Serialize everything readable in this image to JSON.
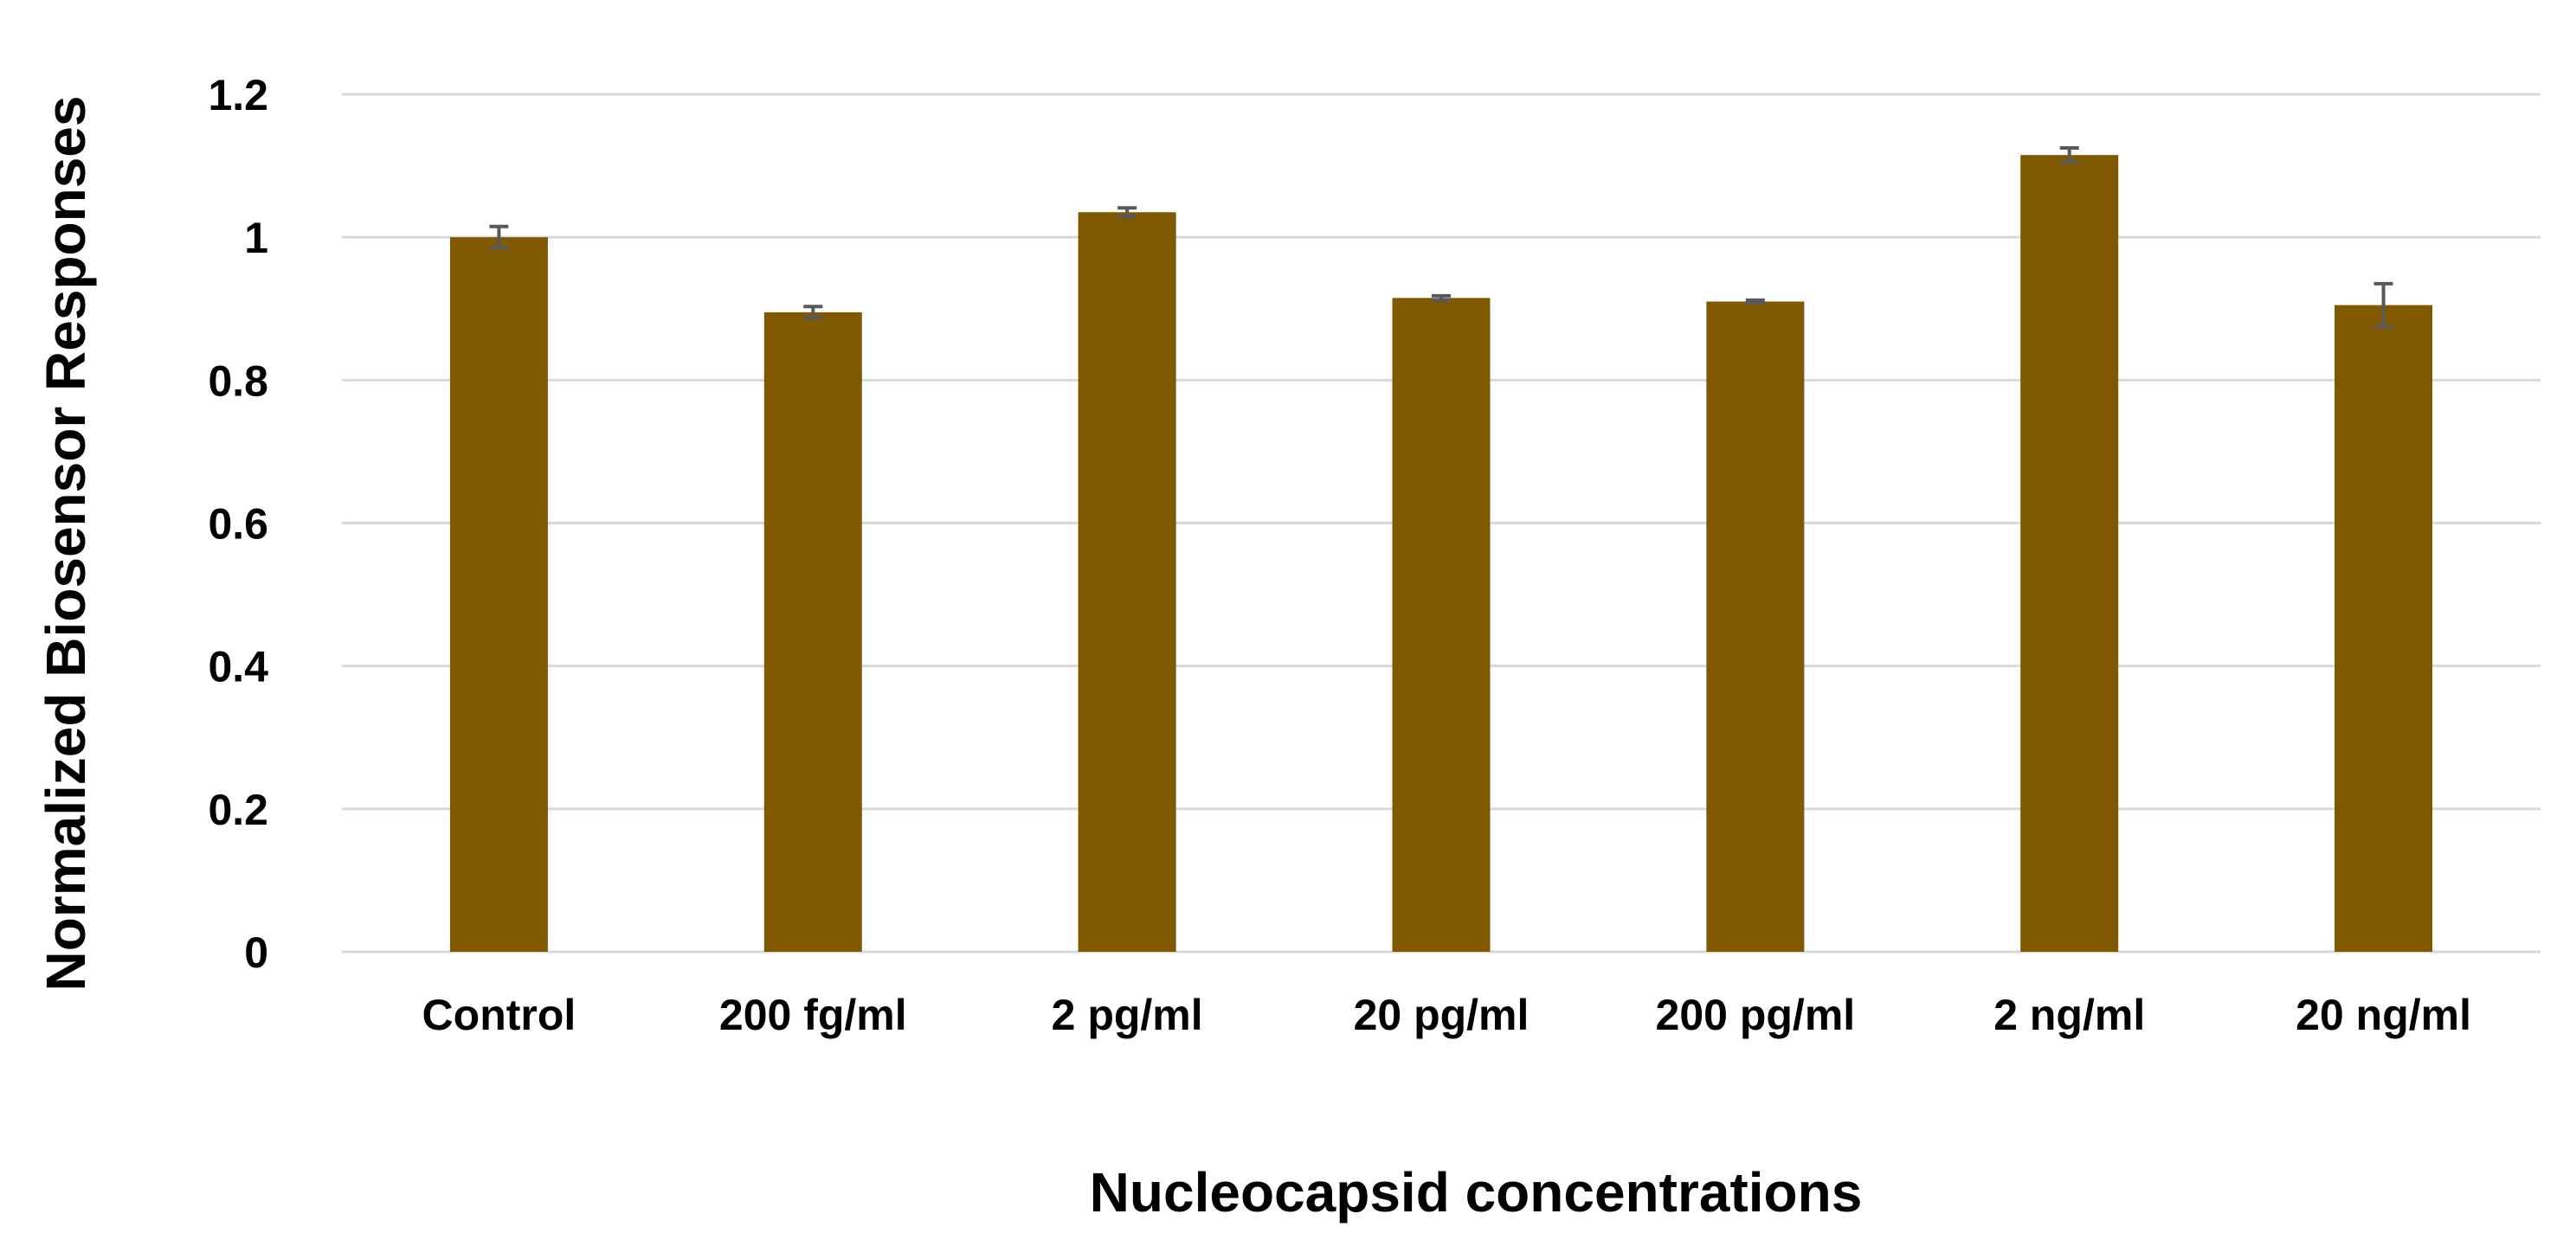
{
  "chart_data": {
    "type": "bar",
    "title": "",
    "xlabel": "Nucleocapsid concentrations",
    "ylabel": "Normalized Biosensor  Responses",
    "categories": [
      "Control",
      "200 fg/ml",
      "2 pg/ml",
      "20 pg/ml",
      "200 pg/ml",
      "2 ng/ml",
      "20 ng/ml"
    ],
    "values": [
      1.0,
      0.895,
      1.035,
      0.915,
      0.91,
      1.115,
      0.905
    ],
    "errors": [
      0.015,
      0.008,
      0.006,
      0.003,
      0.002,
      0.01,
      0.03
    ],
    "ylim": [
      0,
      1.2
    ],
    "yticks": [
      0,
      0.2,
      0.4,
      0.6,
      0.8,
      1,
      1.2
    ],
    "ytick_labels": [
      "0",
      "0.2",
      "0.4",
      "0.6",
      "0.8",
      "1",
      "1.2"
    ],
    "grid": true,
    "legend": "none",
    "bar_color": "#7f5800",
    "errorbar_color": "#595959",
    "grid_color": "#d9d9d9"
  }
}
